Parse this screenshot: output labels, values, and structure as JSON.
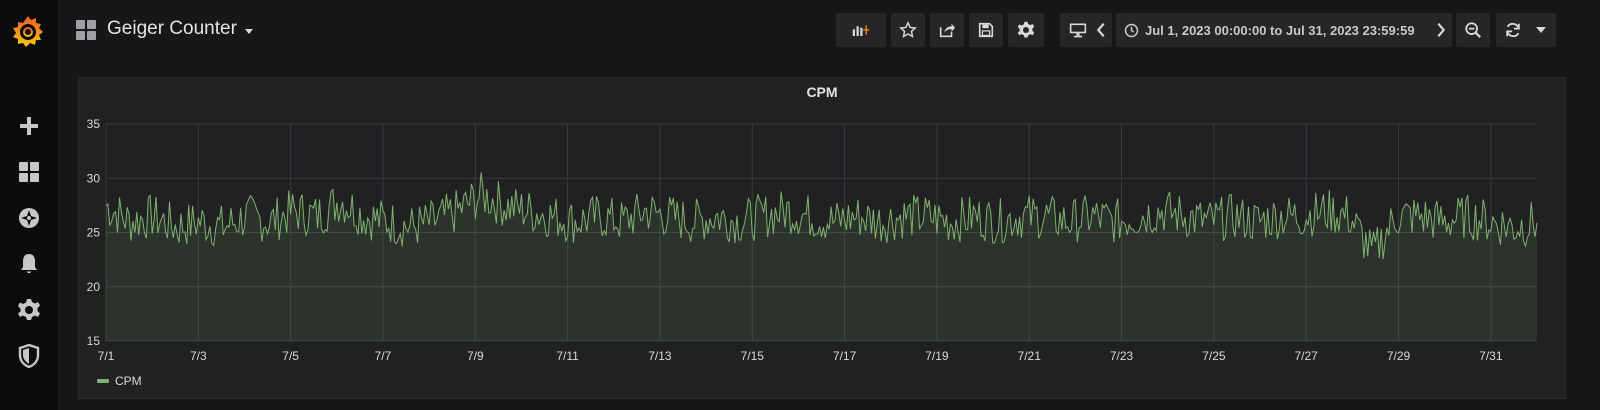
{
  "sidebar": {
    "items": [
      {
        "name": "create",
        "icon": "plus-icon"
      },
      {
        "name": "dashboards",
        "icon": "dashboards-icon"
      },
      {
        "name": "explore",
        "icon": "compass-icon"
      },
      {
        "name": "alerting",
        "icon": "bell-icon"
      },
      {
        "name": "configuration",
        "icon": "gear-icon"
      },
      {
        "name": "server-admin",
        "icon": "shield-icon"
      }
    ]
  },
  "header": {
    "title": "Geiger Counter",
    "time_range": "Jul 1, 2023 00:00:00 to Jul 31, 2023 23:59:59"
  },
  "toolbar": {
    "icons": [
      "add-panel-icon",
      "star-icon",
      "share-icon",
      "save-icon",
      "settings-icon",
      "tv-mode-icon",
      "time-back-icon",
      "clock-icon",
      "time-forward-icon",
      "zoom-out-icon",
      "refresh-icon",
      "chevron-down-icon"
    ]
  },
  "colors": {
    "series": "#7eb26d",
    "accent": "#eb7b18"
  },
  "panel": {
    "title": "CPM",
    "legend": "CPM"
  },
  "chart_data": {
    "type": "line",
    "title": "CPM",
    "xlabel": "",
    "ylabel": "",
    "ylim": [
      15,
      35
    ],
    "yticks": [
      15,
      20,
      25,
      30,
      35
    ],
    "xticks": [
      "7/1",
      "7/3",
      "7/5",
      "7/7",
      "7/9",
      "7/11",
      "7/13",
      "7/15",
      "7/17",
      "7/19",
      "7/21",
      "7/23",
      "7/25",
      "7/27",
      "7/29",
      "7/31"
    ],
    "xlim": [
      "2023-07-01",
      "2023-07-31 23:59:59"
    ],
    "grid": true,
    "fill": true,
    "legend_position": "bottom-left",
    "series": [
      {
        "name": "CPM",
        "x": [
          "7/1",
          "7/1.5",
          "7/2",
          "7/2.5",
          "7/3",
          "7/3.5",
          "7/4",
          "7/4.5",
          "7/5",
          "7/5.5",
          "7/6",
          "7/6.5",
          "7/7",
          "7/7.5",
          "7/8",
          "7/8.5",
          "7/9",
          "7/9.5",
          "7/10",
          "7/10.5",
          "7/11",
          "7/11.5",
          "7/12",
          "7/12.5",
          "7/13",
          "7/13.5",
          "7/14",
          "7/14.5",
          "7/15",
          "7/15.5",
          "7/16",
          "7/16.5",
          "7/17",
          "7/17.5",
          "7/18",
          "7/18.5",
          "7/19",
          "7/19.5",
          "7/20",
          "7/20.5",
          "7/21",
          "7/21.5",
          "7/22",
          "7/22.5",
          "7/23",
          "7/23.5",
          "7/24",
          "7/24.5",
          "7/25",
          "7/25.5",
          "7/26",
          "7/26.5",
          "7/27",
          "7/27.5",
          "7/28",
          "7/28.5",
          "7/29",
          "7/29.5",
          "7/30",
          "7/30.5",
          "7/31",
          "7/31.5"
        ],
        "values": [
          27.5,
          26.0,
          26.5,
          25.5,
          26.0,
          25.5,
          26.5,
          26.0,
          27.0,
          26.5,
          28.0,
          26.5,
          26.0,
          25.5,
          26.0,
          27.0,
          28.5,
          27.5,
          27.0,
          26.5,
          26.0,
          26.5,
          26.0,
          27.0,
          26.5,
          26.0,
          26.5,
          26.0,
          26.5,
          27.0,
          26.5,
          26.0,
          26.5,
          26.0,
          26.5,
          26.5,
          26.0,
          26.5,
          26.0,
          26.5,
          26.5,
          26.0,
          26.5,
          26.0,
          26.5,
          27.0,
          26.5,
          26.0,
          26.5,
          26.0,
          26.5,
          26.5,
          27.0,
          26.5,
          23.0,
          26.5,
          26.5,
          26.0,
          26.5,
          26.0,
          25.5,
          26.0
        ]
      }
    ]
  }
}
